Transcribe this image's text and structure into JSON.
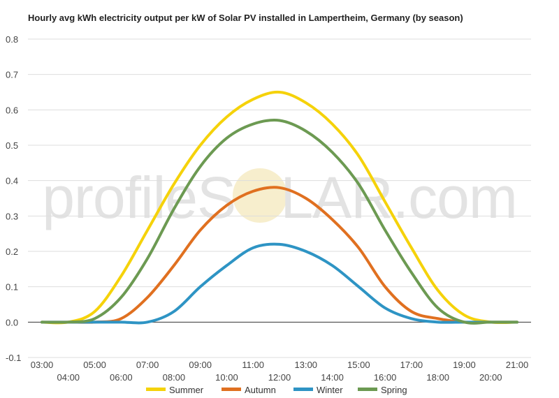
{
  "chart_data": {
    "type": "line",
    "title": "Hourly avg kWh electricity output per kW of Solar PV installed in Lampertheim, Germany (by season)",
    "watermark": {
      "before": "profileS",
      "sun_letter": "O",
      "after": "LAR.com"
    },
    "x": [
      "03:00",
      "04:00",
      "05:00",
      "06:00",
      "07:00",
      "08:00",
      "09:00",
      "10:00",
      "11:00",
      "12:00",
      "13:00",
      "14:00",
      "15:00",
      "16:00",
      "17:00",
      "18:00",
      "19:00",
      "20:00",
      "21:00"
    ],
    "ylim": [
      -0.1,
      0.8
    ],
    "yticks": [
      "0.8",
      "0.7",
      "0.6",
      "0.5",
      "0.4",
      "0.3",
      "0.2",
      "0.1",
      "0.0",
      "-0.1"
    ],
    "grid": true,
    "legend_position": "bottom",
    "series": [
      {
        "name": "Summer",
        "color": "#f5d20a",
        "values": [
          0,
          0,
          0.03,
          0.13,
          0.26,
          0.39,
          0.5,
          0.58,
          0.63,
          0.65,
          0.62,
          0.56,
          0.47,
          0.34,
          0.21,
          0.09,
          0.02,
          0,
          0
        ]
      },
      {
        "name": "Autumn",
        "color": "#e07020",
        "values": [
          0,
          0,
          0,
          0.01,
          0.07,
          0.16,
          0.26,
          0.33,
          0.37,
          0.38,
          0.35,
          0.29,
          0.21,
          0.1,
          0.03,
          0.01,
          0,
          0,
          0
        ]
      },
      {
        "name": "Winter",
        "color": "#2e94c4",
        "values": [
          0,
          0,
          0,
          0,
          0,
          0.03,
          0.1,
          0.16,
          0.21,
          0.22,
          0.2,
          0.16,
          0.1,
          0.04,
          0.01,
          0,
          0,
          0,
          0
        ]
      },
      {
        "name": "Spring",
        "color": "#6c9a52",
        "values": [
          0,
          0,
          0.01,
          0.07,
          0.18,
          0.32,
          0.44,
          0.52,
          0.56,
          0.57,
          0.54,
          0.48,
          0.39,
          0.26,
          0.14,
          0.04,
          0,
          0,
          0
        ]
      }
    ]
  }
}
